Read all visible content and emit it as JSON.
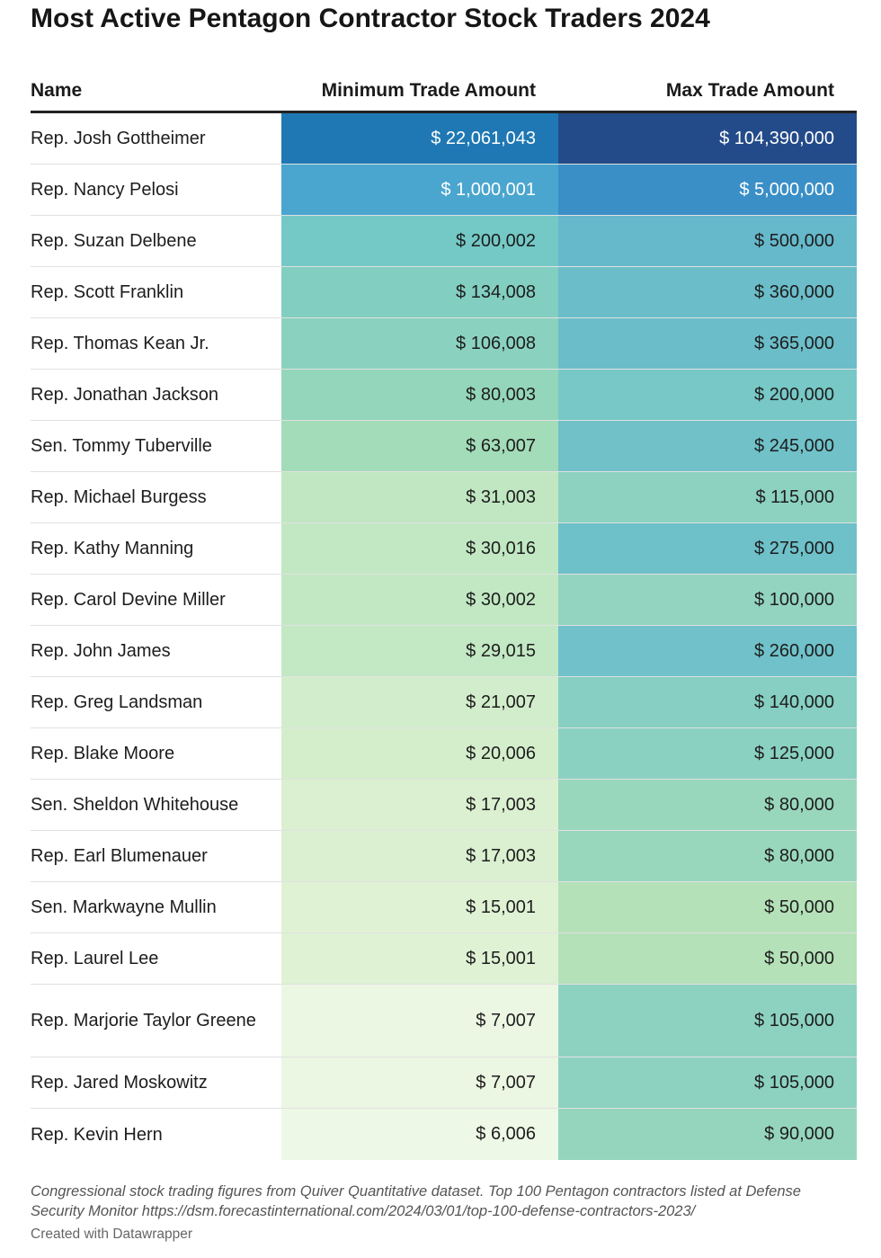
{
  "title": "Most Active Pentagon Contractor Stock Traders 2024",
  "columns": {
    "name": "Name",
    "min": "Minimum Trade Amount",
    "max": "Max Trade Amount"
  },
  "chart_data": {
    "type": "table",
    "title": "Most Active Pentagon Contractor Stock Traders 2024",
    "columns": [
      "Name",
      "Minimum Trade Amount",
      "Max Trade Amount"
    ],
    "rows": [
      {
        "name": "Rep. Josh Gottheimer",
        "min": "$ 22,061,043",
        "max": "$ 104,390,000",
        "min_value": 22061043,
        "max_value": 104390000,
        "min_color": "#1f78b4",
        "max_color": "#234b89",
        "min_text": "#ffffff",
        "max_text": "#ffffff"
      },
      {
        "name": "Rep. Nancy Pelosi",
        "min": "$ 1,000,001",
        "max": "$ 5,000,000",
        "min_value": 1000001,
        "max_value": 5000000,
        "min_color": "#4aa6cf",
        "max_color": "#3a8fc7",
        "min_text": "#ffffff",
        "max_text": "#ffffff"
      },
      {
        "name": "Rep. Suzan Delbene",
        "min": "$ 200,002",
        "max": "$ 500,000",
        "min_value": 200002,
        "max_value": 500000,
        "min_color": "#74c9c6",
        "max_color": "#66b8cb",
        "min_text": "#1d1d1d",
        "max_text": "#1d1d1d"
      },
      {
        "name": "Rep. Scott Franklin",
        "min": "$ 134,008",
        "max": "$ 360,000",
        "min_value": 134008,
        "max_value": 360000,
        "min_color": "#82cfc1",
        "max_color": "#6bbdc9",
        "min_text": "#1d1d1d",
        "max_text": "#1d1d1d"
      },
      {
        "name": "Rep. Thomas Kean Jr.",
        "min": "$ 106,008",
        "max": "$ 365,000",
        "min_value": 106008,
        "max_value": 365000,
        "min_color": "#8ad2bf",
        "max_color": "#6bbdc9",
        "min_text": "#1d1d1d",
        "max_text": "#1d1d1d"
      },
      {
        "name": "Rep. Jonathan Jackson",
        "min": "$ 80,003",
        "max": "$ 200,000",
        "min_value": 80003,
        "max_value": 200000,
        "min_color": "#94d6bb",
        "max_color": "#77c8c6",
        "min_text": "#1d1d1d",
        "max_text": "#1d1d1d"
      },
      {
        "name": "Sen. Tommy Tuberville",
        "min": "$ 63,007",
        "max": "$ 245,000",
        "min_value": 63007,
        "max_value": 245000,
        "min_color": "#a3dcb8",
        "max_color": "#70c1c8",
        "min_text": "#1d1d1d",
        "max_text": "#1d1d1d"
      },
      {
        "name": "Rep. Michael Burgess",
        "min": "$ 31,003",
        "max": "$ 115,000",
        "min_value": 31003,
        "max_value": 115000,
        "min_color": "#c0e7c2",
        "max_color": "#8dd2c0",
        "min_text": "#1d1d1d",
        "max_text": "#1d1d1d"
      },
      {
        "name": "Rep. Kathy Manning",
        "min": "$ 30,016",
        "max": "$ 275,000",
        "min_value": 30016,
        "max_value": 275000,
        "min_color": "#c1e8c3",
        "max_color": "#6ec0c9",
        "min_text": "#1d1d1d",
        "max_text": "#1d1d1d"
      },
      {
        "name": "Rep. Carol Devine Miller",
        "min": "$ 30,002",
        "max": "$ 100,000",
        "min_value": 30002,
        "max_value": 100000,
        "min_color": "#c1e8c3",
        "max_color": "#92d4bf",
        "min_text": "#1d1d1d",
        "max_text": "#1d1d1d"
      },
      {
        "name": "Rep. John James",
        "min": "$ 29,015",
        "max": "$ 260,000",
        "min_value": 29015,
        "max_value": 260000,
        "min_color": "#c3e8c4",
        "max_color": "#70c1c9",
        "min_text": "#1d1d1d",
        "max_text": "#1d1d1d"
      },
      {
        "name": "Rep. Greg Landsman",
        "min": "$ 21,007",
        "max": "$ 140,000",
        "min_value": 21007,
        "max_value": 140000,
        "min_color": "#d2edcb",
        "max_color": "#86cfc2",
        "min_text": "#1d1d1d",
        "max_text": "#1d1d1d"
      },
      {
        "name": "Rep. Blake Moore",
        "min": "$ 20,006",
        "max": "$ 125,000",
        "min_value": 20006,
        "max_value": 125000,
        "min_color": "#d4eecc",
        "max_color": "#8ad1c1",
        "min_text": "#1d1d1d",
        "max_text": "#1d1d1d"
      },
      {
        "name": "Sen. Sheldon Whitehouse",
        "min": "$ 17,003",
        "max": "$ 80,000",
        "min_value": 17003,
        "max_value": 80000,
        "min_color": "#daf0d0",
        "max_color": "#99d7bd",
        "min_text": "#1d1d1d",
        "max_text": "#1d1d1d"
      },
      {
        "name": "Rep. Earl Blumenauer",
        "min": "$ 17,003",
        "max": "$ 80,000",
        "min_value": 17003,
        "max_value": 80000,
        "min_color": "#daf0d0",
        "max_color": "#99d7bd",
        "min_text": "#1d1d1d",
        "max_text": "#1d1d1d"
      },
      {
        "name": "Sen. Markwayne Mullin",
        "min": "$ 15,001",
        "max": "$ 50,000",
        "min_value": 15001,
        "max_value": 50000,
        "min_color": "#dff2d4",
        "max_color": "#b4e1b8",
        "min_text": "#1d1d1d",
        "max_text": "#1d1d1d"
      },
      {
        "name": "Rep. Laurel Lee",
        "min": "$ 15,001",
        "max": "$ 50,000",
        "min_value": 15001,
        "max_value": 50000,
        "min_color": "#dff2d4",
        "max_color": "#b4e1b8",
        "min_text": "#1d1d1d",
        "max_text": "#1d1d1d"
      },
      {
        "name": "Rep. Marjorie Taylor Greene",
        "min": "$ 7,007",
        "max": "$ 105,000",
        "min_value": 7007,
        "max_value": 105000,
        "min_color": "#ecf7e3",
        "max_color": "#8dd2c0",
        "min_text": "#1d1d1d",
        "max_text": "#1d1d1d",
        "tall": true
      },
      {
        "name": "Rep. Jared Moskowitz",
        "min": "$ 7,007",
        "max": "$ 105,000",
        "min_value": 7007,
        "max_value": 105000,
        "min_color": "#ecf7e3",
        "max_color": "#8dd2c0",
        "min_text": "#1d1d1d",
        "max_text": "#1d1d1d"
      },
      {
        "name": "Rep. Kevin Hern",
        "min": "$ 6,006",
        "max": "$ 90,000",
        "min_value": 6006,
        "max_value": 90000,
        "min_color": "#eef8e6",
        "max_color": "#95d5be",
        "min_text": "#1d1d1d",
        "max_text": "#1d1d1d"
      }
    ]
  },
  "footnote": "Congressional stock trading figures from Quiver Quantitative dataset. Top 100 Pentagon contractors listed at Defense Security Monitor https://dsm.forecastinternational.com/2024/03/01/top-100-defense-contractors-2023/",
  "credit": "Created with Datawrapper"
}
